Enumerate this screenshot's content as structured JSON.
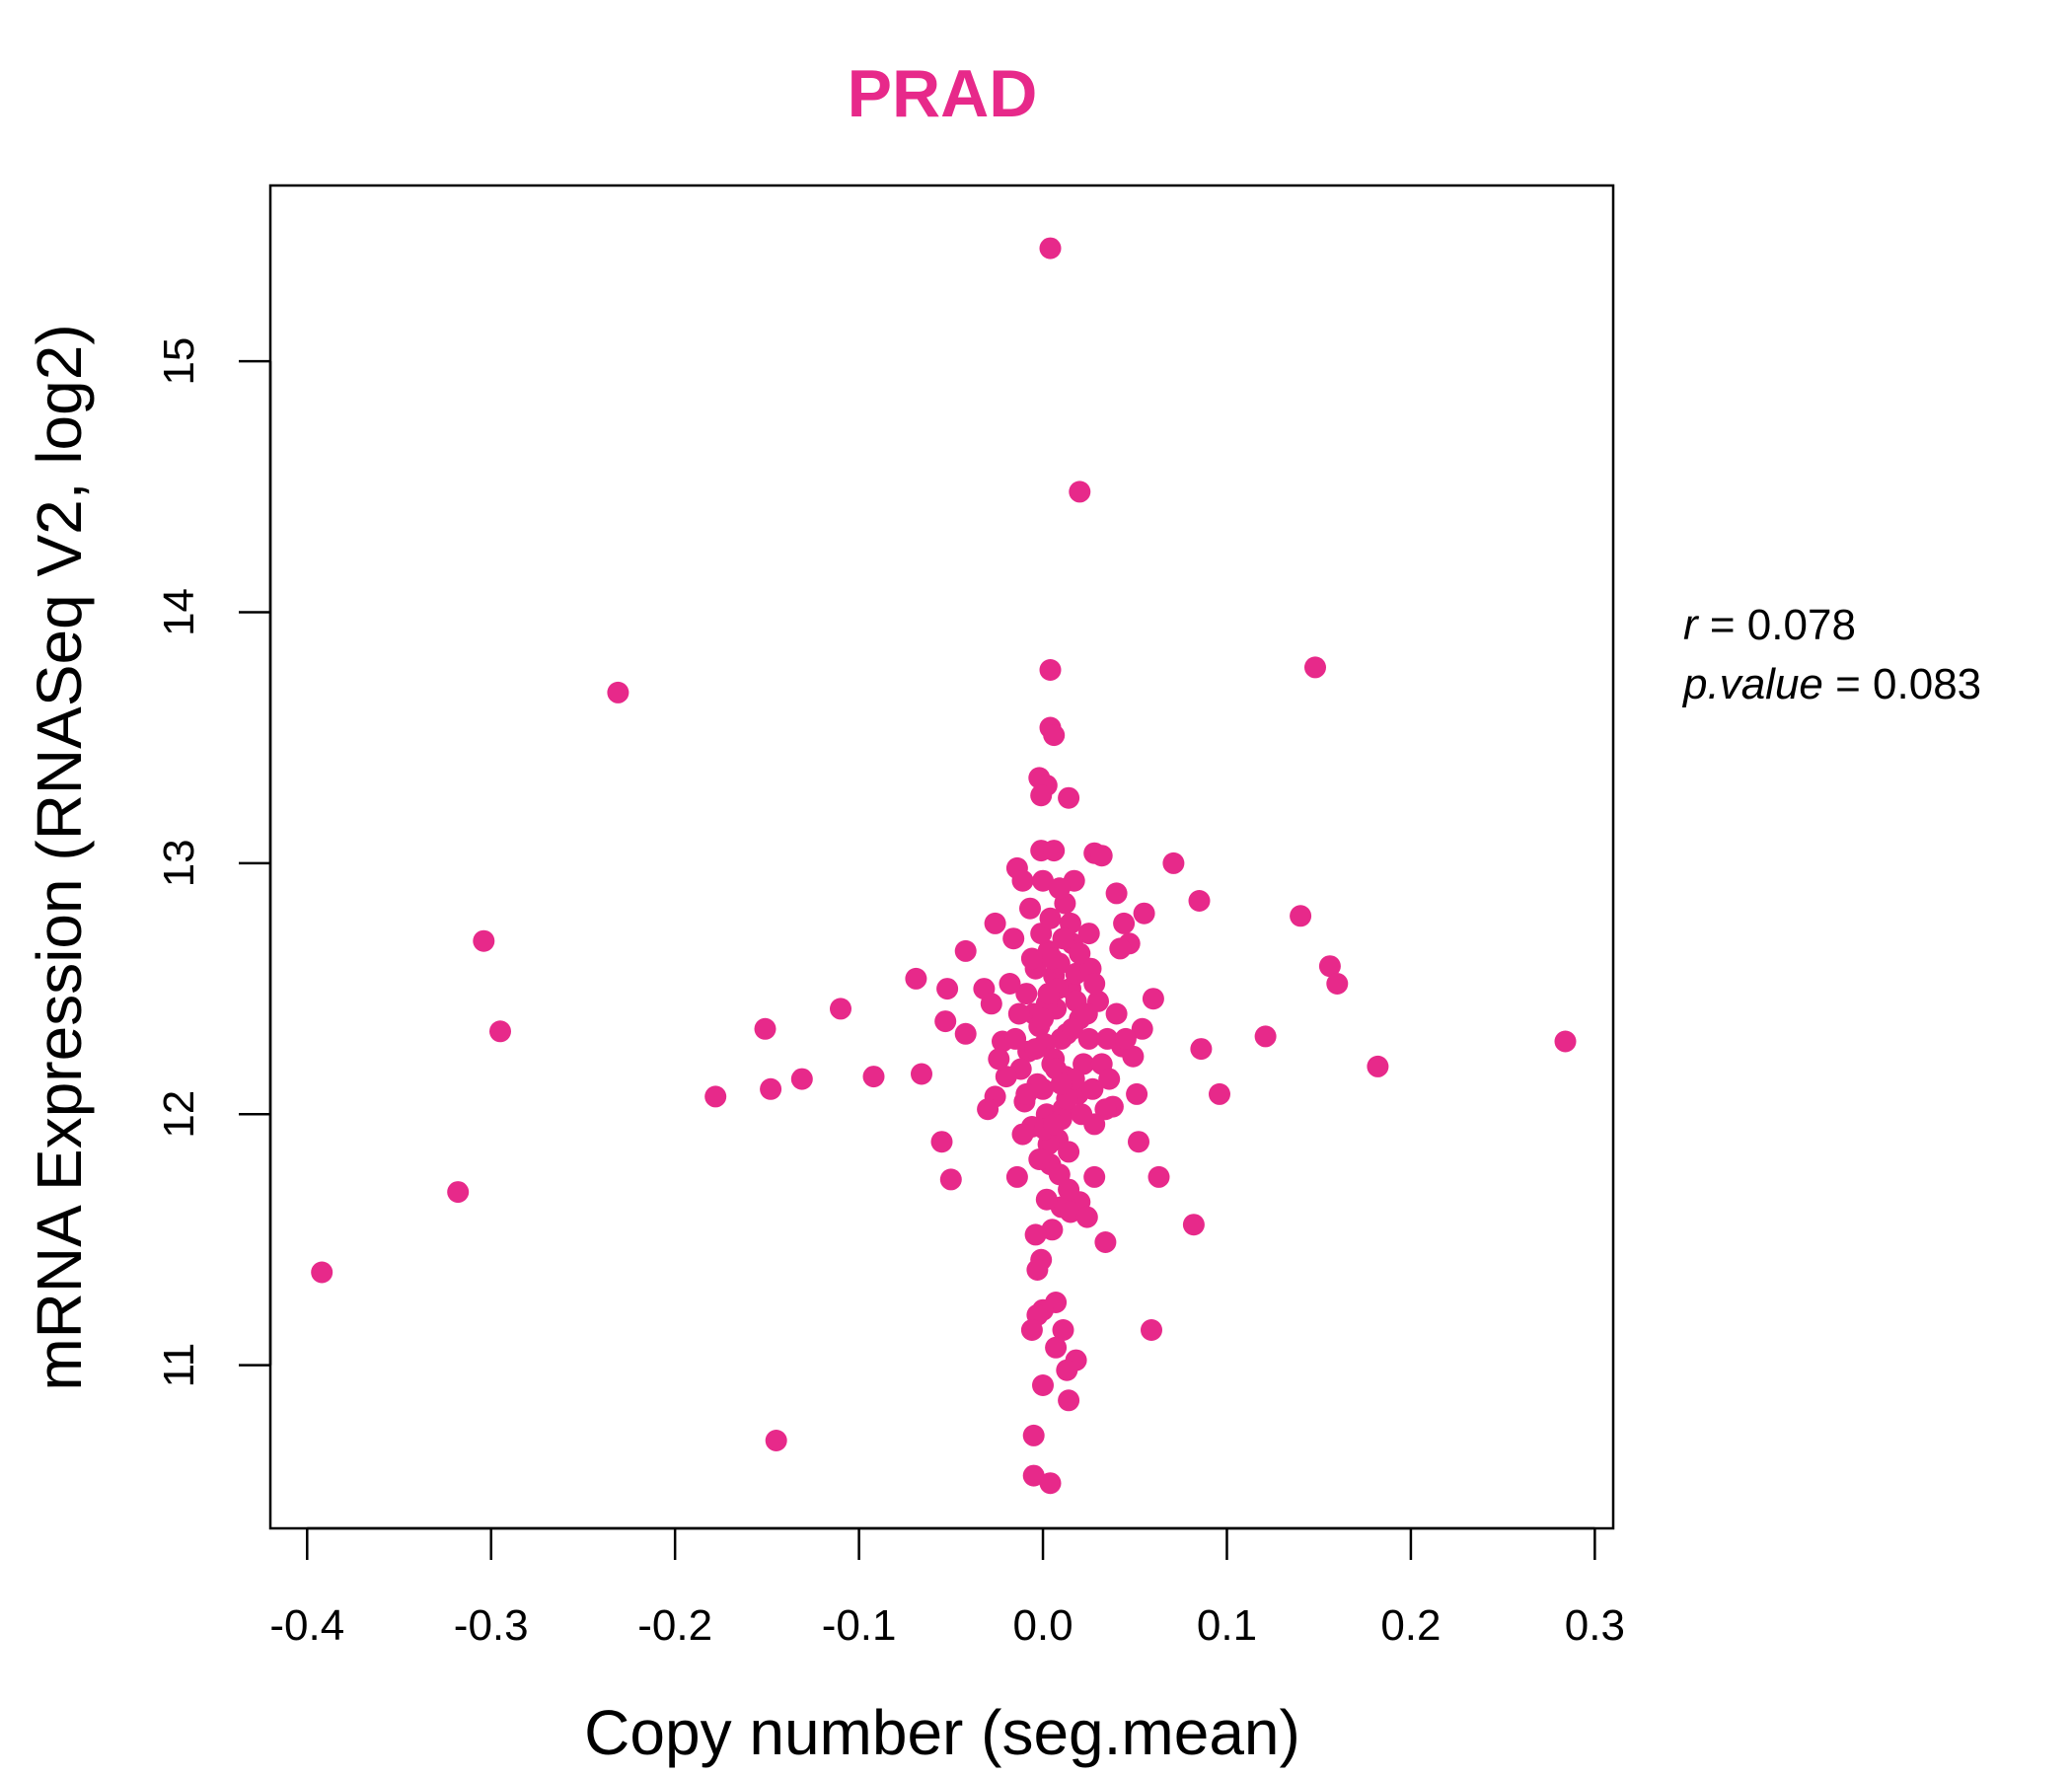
{
  "chart_data": {
    "type": "scatter",
    "title": "PRAD",
    "xlabel": "Copy number (seg.mean)",
    "ylabel": "mRNA Expression (RNASeq V2, log2)",
    "xlim": [
      -0.42,
      0.31
    ],
    "ylim": [
      10.35,
      15.7
    ],
    "xticks": [
      -0.4,
      -0.3,
      -0.2,
      -0.1,
      0.0,
      0.1,
      0.2,
      0.3
    ],
    "xtick_labels": [
      "-0.4",
      "-0.3",
      "-0.2",
      "-0.1",
      "0.0",
      "0.1",
      "0.2",
      "0.3"
    ],
    "yticks": [
      11,
      12,
      13,
      14,
      15
    ],
    "ytick_labels": [
      "11",
      "12",
      "13",
      "14",
      "15"
    ],
    "grid": false,
    "point_color": "#E7298A",
    "annotations": {
      "r_label": "r",
      "r_eq": " = 0.078",
      "p_label": "p.value",
      "p_eq": " = 0.083"
    },
    "points": [
      [
        0.004,
        15.45
      ],
      [
        0.02,
        14.48
      ],
      [
        0.004,
        13.77
      ],
      [
        0.148,
        13.78
      ],
      [
        -0.231,
        13.68
      ],
      [
        0.004,
        13.54
      ],
      [
        0.006,
        13.51
      ],
      [
        -0.002,
        13.34
      ],
      [
        0.002,
        13.31
      ],
      [
        -0.001,
        13.27
      ],
      [
        0.014,
        13.26
      ],
      [
        0.028,
        13.04
      ],
      [
        0.032,
        13.03
      ],
      [
        0.071,
        13.0
      ],
      [
        -0.001,
        13.05
      ],
      [
        0.006,
        13.05
      ],
      [
        -0.014,
        12.98
      ],
      [
        -0.011,
        12.93
      ],
      [
        0.0,
        12.93
      ],
      [
        0.017,
        12.93
      ],
      [
        0.04,
        12.88
      ],
      [
        0.085,
        12.85
      ],
      [
        0.055,
        12.8
      ],
      [
        0.14,
        12.79
      ],
      [
        -0.026,
        12.76
      ],
      [
        0.044,
        12.76
      ],
      [
        -0.304,
        12.69
      ],
      [
        -0.042,
        12.65
      ],
      [
        -0.016,
        12.7
      ],
      [
        0.025,
        12.72
      ],
      [
        0.047,
        12.68
      ],
      [
        0.042,
        12.66
      ],
      [
        0.156,
        12.59
      ],
      [
        0.16,
        12.52
      ],
      [
        -0.069,
        12.54
      ],
      [
        -0.052,
        12.5
      ],
      [
        -0.032,
        12.5
      ],
      [
        0.06,
        12.46
      ],
      [
        -0.11,
        12.42
      ],
      [
        -0.053,
        12.37
      ],
      [
        -0.295,
        12.33
      ],
      [
        -0.151,
        12.34
      ],
      [
        -0.042,
        12.32
      ],
      [
        0.054,
        12.34
      ],
      [
        0.121,
        12.31
      ],
      [
        0.284,
        12.29
      ],
      [
        0.086,
        12.26
      ],
      [
        -0.022,
        12.29
      ],
      [
        0.043,
        12.27
      ],
      [
        0.049,
        12.23
      ],
      [
        0.182,
        12.19
      ],
      [
        -0.066,
        12.16
      ],
      [
        -0.092,
        12.15
      ],
      [
        -0.131,
        12.14
      ],
      [
        -0.148,
        12.1
      ],
      [
        -0.178,
        12.07
      ],
      [
        0.096,
        12.08
      ],
      [
        0.051,
        12.08
      ],
      [
        -0.026,
        12.07
      ],
      [
        -0.03,
        12.02
      ],
      [
        0.038,
        12.03
      ],
      [
        0.034,
        12.02
      ],
      [
        0.028,
        11.96
      ],
      [
        -0.055,
        11.89
      ],
      [
        0.052,
        11.89
      ],
      [
        -0.05,
        11.74
      ],
      [
        -0.014,
        11.75
      ],
      [
        0.063,
        11.75
      ],
      [
        0.028,
        11.75
      ],
      [
        -0.318,
        11.69
      ],
      [
        0.01,
        11.63
      ],
      [
        0.02,
        11.65
      ],
      [
        0.015,
        11.61
      ],
      [
        0.024,
        11.59
      ],
      [
        0.082,
        11.56
      ],
      [
        0.005,
        11.54
      ],
      [
        -0.004,
        11.52
      ],
      [
        0.034,
        11.49
      ],
      [
        -0.001,
        11.42
      ],
      [
        -0.003,
        11.38
      ],
      [
        -0.392,
        11.37
      ],
      [
        0.007,
        11.25
      ],
      [
        0.0,
        11.22
      ],
      [
        -0.003,
        11.2
      ],
      [
        0.059,
        11.14
      ],
      [
        -0.006,
        11.14
      ],
      [
        0.011,
        11.14
      ],
      [
        0.007,
        11.07
      ],
      [
        0.018,
        11.02
      ],
      [
        0.013,
        10.98
      ],
      [
        0.0,
        10.92
      ],
      [
        0.014,
        10.86
      ],
      [
        -0.005,
        10.72
      ],
      [
        -0.145,
        10.7
      ],
      [
        -0.005,
        10.56
      ],
      [
        0.004,
        10.53
      ],
      [
        0.0,
        12.1
      ],
      [
        0.005,
        12.2
      ],
      [
        0.01,
        12.3
      ],
      [
        -0.005,
        12.4
      ],
      [
        0.015,
        12.5
      ],
      [
        0.002,
        12.0
      ],
      [
        0.008,
        11.9
      ],
      [
        -0.008,
        12.25
      ],
      [
        0.012,
        12.15
      ],
      [
        -0.002,
        12.35
      ],
      [
        0.018,
        12.45
      ],
      [
        0.006,
        12.55
      ],
      [
        -0.01,
        12.05
      ],
      [
        0.022,
        12.2
      ],
      [
        0.003,
        12.65
      ],
      [
        -0.006,
        11.95
      ],
      [
        0.014,
        11.85
      ],
      [
        0.009,
        12.6
      ],
      [
        -0.003,
        12.12
      ],
      [
        0.02,
        12.38
      ],
      [
        0.001,
        12.28
      ],
      [
        0.011,
        12.02
      ],
      [
        -0.012,
        12.18
      ],
      [
        0.016,
        12.68
      ],
      [
        0.007,
        12.42
      ],
      [
        -0.004,
        12.58
      ],
      [
        0.013,
        12.32
      ],
      [
        0.004,
        11.8
      ],
      [
        0.019,
        12.08
      ],
      [
        -0.009,
        12.48
      ],
      [
        0.01,
        11.98
      ],
      [
        0.006,
        12.22
      ],
      [
        -0.001,
        12.72
      ],
      [
        0.017,
        12.14
      ],
      [
        0.002,
        12.44
      ],
      [
        0.025,
        12.3
      ],
      [
        -0.015,
        12.3
      ],
      [
        0.03,
        12.45
      ],
      [
        -0.02,
        12.15
      ],
      [
        0.027,
        12.1
      ],
      [
        0.004,
        12.78
      ],
      [
        0.012,
        12.84
      ],
      [
        -0.007,
        12.82
      ],
      [
        0.015,
        12.76
      ],
      [
        0.003,
        11.88
      ],
      [
        0.009,
        11.76
      ],
      [
        -0.002,
        11.82
      ],
      [
        0.021,
        12.0
      ],
      [
        -0.011,
        11.92
      ],
      [
        0.008,
        12.5
      ],
      [
        0.0,
        12.38
      ],
      [
        0.005,
        12.62
      ],
      [
        0.013,
        12.06
      ],
      [
        -0.004,
        12.26
      ],
      [
        0.018,
        12.56
      ],
      [
        0.011,
        12.7
      ],
      [
        -0.013,
        12.4
      ],
      [
        0.024,
        12.4
      ],
      [
        0.001,
        11.94
      ],
      [
        0.007,
        12.18
      ],
      [
        0.035,
        12.3
      ],
      [
        -0.018,
        12.52
      ],
      [
        0.032,
        12.2
      ],
      [
        -0.024,
        12.22
      ],
      [
        0.026,
        12.58
      ],
      [
        0.014,
        11.7
      ],
      [
        0.002,
        11.66
      ],
      [
        0.006,
        11.96
      ],
      [
        -0.006,
        12.62
      ],
      [
        0.016,
        12.34
      ],
      [
        0.009,
        12.9
      ],
      [
        0.01,
        12.12
      ],
      [
        0.003,
        12.48
      ],
      [
        -0.009,
        12.08
      ],
      [
        0.02,
        12.64
      ],
      [
        0.028,
        12.52
      ],
      [
        0.04,
        12.4
      ],
      [
        -0.028,
        12.44
      ],
      [
        0.036,
        12.14
      ],
      [
        0.045,
        12.3
      ]
    ]
  }
}
